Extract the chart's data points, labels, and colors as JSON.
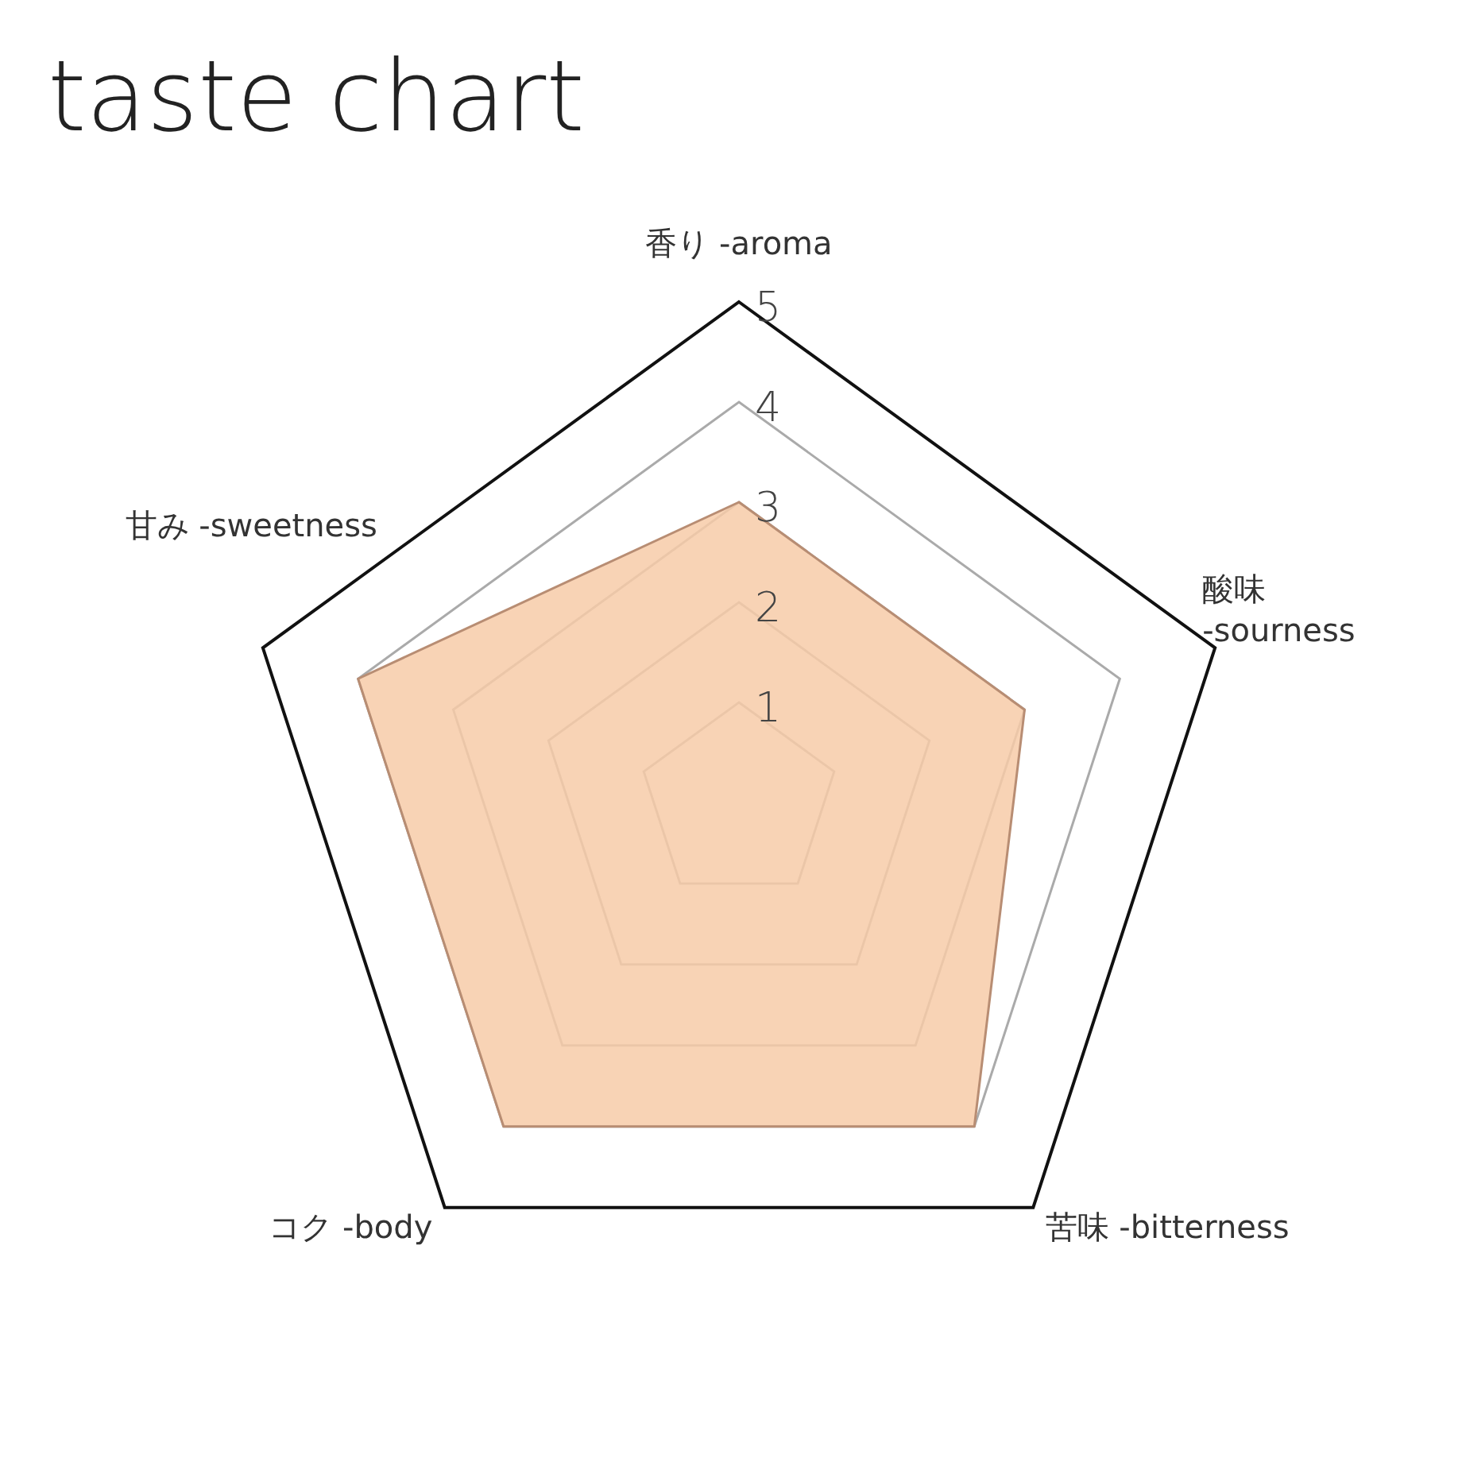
{
  "chart_data": {
    "type": "radar",
    "title": "taste chart",
    "categories": [
      "香り -aroma",
      "酸味 -sourness",
      "苦味 -bitterness",
      "コク -body",
      "甘み -sweetness"
    ],
    "series": [
      {
        "color": "#f7cba8",
        "values": [
          3,
          3,
          4,
          4,
          4
        ]
      }
    ],
    "ylim": [
      0,
      5
    ],
    "yticks": [
      1,
      2,
      3,
      4,
      5
    ],
    "grid": true
  }
}
